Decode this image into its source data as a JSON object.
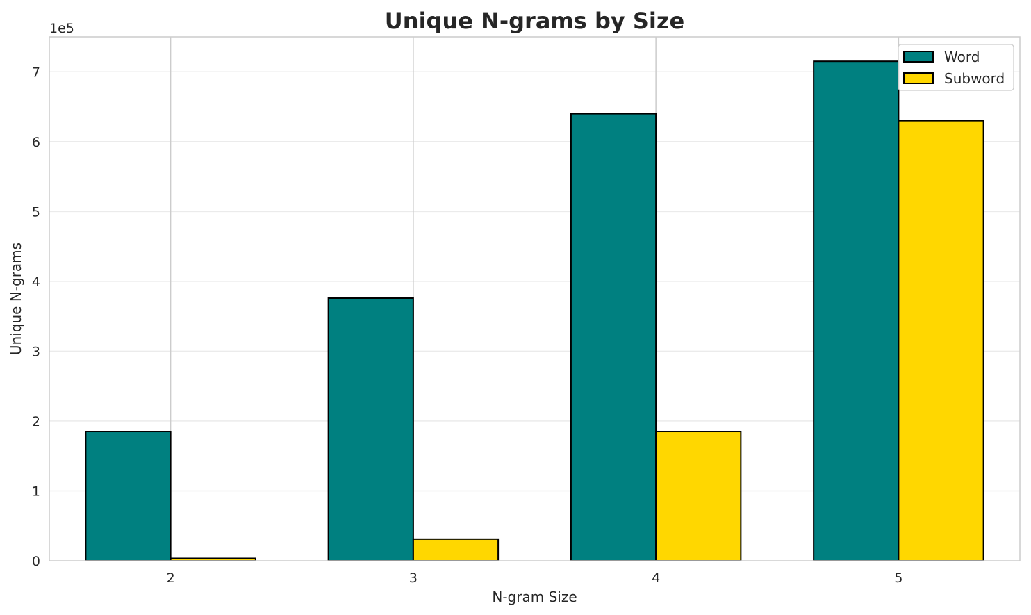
{
  "chart_data": {
    "type": "bar",
    "title": "Unique N-grams by Size",
    "xlabel": "N-gram Size",
    "ylabel": "Unique N-grams",
    "y_offset_label": "1e5",
    "y_scale": 100000,
    "categories": [
      "2",
      "3",
      "4",
      "5"
    ],
    "yticks": [
      0,
      1,
      2,
      3,
      4,
      5,
      6,
      7
    ],
    "ylim": [
      0,
      750000
    ],
    "series": [
      {
        "name": "Word",
        "color": "#008080",
        "values": [
          185000,
          376000,
          640000,
          715000
        ]
      },
      {
        "name": "Subword",
        "color": "#FFD700",
        "values": [
          3500,
          31000,
          185000,
          630000
        ]
      }
    ],
    "grid": true,
    "legend_position": "top-right"
  }
}
